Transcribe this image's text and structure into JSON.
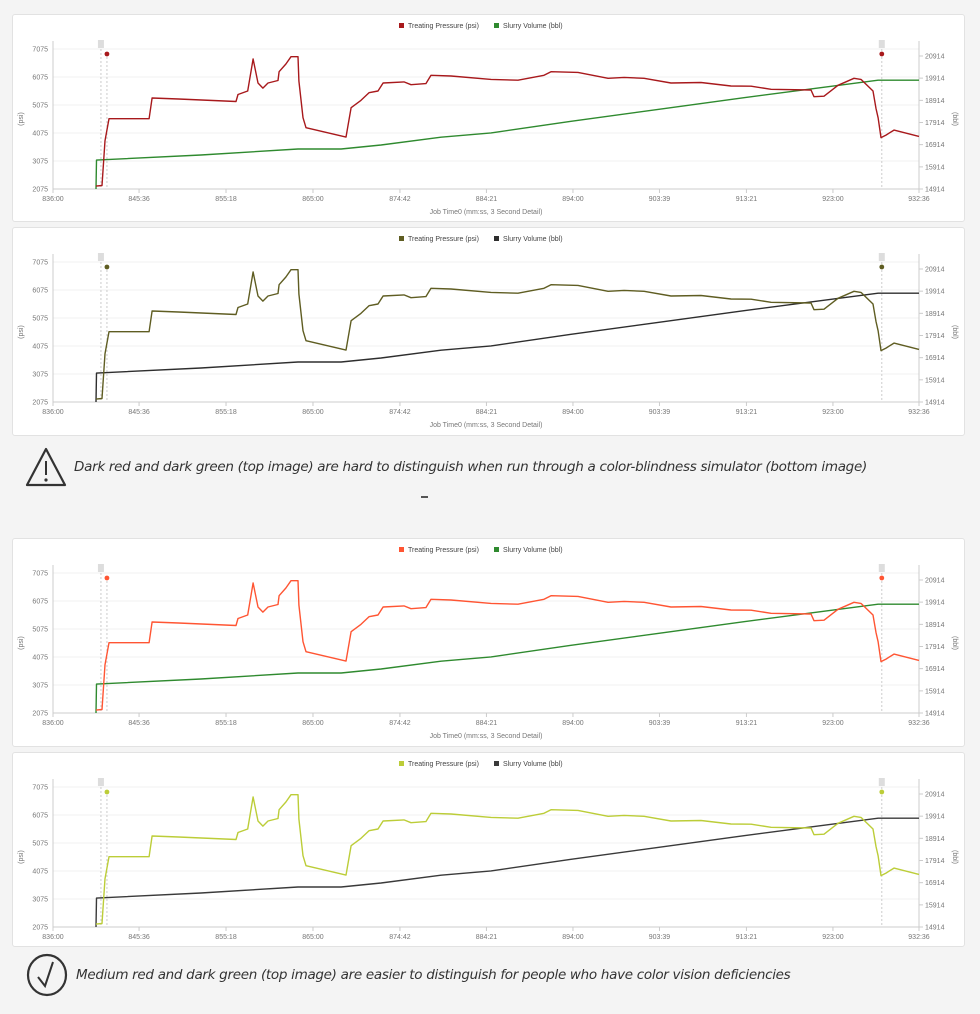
{
  "captions": {
    "warning": "Dark red and dark green (top image) are hard to distinguish when run through a color-blindness simulator (bottom image)",
    "success": "Medium red and dark green (top image) are easier to distinguish for people who have color vision deficiencies"
  },
  "icons": {
    "warning": "warning-triangle-icon",
    "success": "checkmark-circle-icon"
  },
  "chart_data": {
    "type": "line",
    "xlabel": "Job Time0 (mm:ss, 3 Second Detail)",
    "ylabel_left": "(psi)",
    "ylabel_right": "(bbl)",
    "x_ticks": [
      "836:00",
      "845:36",
      "855:18",
      "865:00",
      "874:42",
      "884:21",
      "894:00",
      "903:39",
      "913:21",
      "923:00",
      "932:36"
    ],
    "xlim": [
      "836:00",
      "932:36"
    ],
    "y_left_ticks": [
      2075,
      3075,
      4075,
      5075,
      6075,
      7075
    ],
    "ylim_left": [
      2075,
      7075
    ],
    "y_right_ticks": [
      14914,
      15914,
      16914,
      17914,
      18914,
      19914,
      20914
    ],
    "ylim_right": [
      14914,
      20914
    ],
    "grid": true,
    "legend_position": "top-center",
    "markers": [
      "842:01",
      "928:27"
    ],
    "series": [
      {
        "name": "Treating Pressure (psi)",
        "axis": "left",
        "points": [
          [
            "840:48",
            2180
          ],
          [
            "841:28",
            2200
          ],
          [
            "841:48",
            3800
          ],
          [
            "842:15",
            4585
          ],
          [
            "846:43",
            4585
          ],
          [
            "847:03",
            5325
          ],
          [
            "850:00",
            5290
          ],
          [
            "856:25",
            5200
          ],
          [
            "856:38",
            5450
          ],
          [
            "857:43",
            5575
          ],
          [
            "858:19",
            6718
          ],
          [
            "858:52",
            5860
          ],
          [
            "859:25",
            5680
          ],
          [
            "859:59",
            5860
          ],
          [
            "861:06",
            5950
          ],
          [
            "861:13",
            6265
          ],
          [
            "861:59",
            6540
          ],
          [
            "862:33",
            6800
          ],
          [
            "863:20",
            6800
          ],
          [
            "863:26",
            5932
          ],
          [
            "863:53",
            4620
          ],
          [
            "864:13",
            4265
          ],
          [
            "868:41",
            3930
          ],
          [
            "869:15",
            4980
          ],
          [
            "870:21",
            5240
          ],
          [
            "871:15",
            5515
          ],
          [
            "872:15",
            5575
          ],
          [
            "872:49",
            5860
          ],
          [
            "875:09",
            5900
          ],
          [
            "875:56",
            5800
          ],
          [
            "877:36",
            5840
          ],
          [
            "878:10",
            6135
          ],
          [
            "880:24",
            6110
          ],
          [
            "884:52",
            5990
          ],
          [
            "887:52",
            5960
          ],
          [
            "890:46",
            6135
          ],
          [
            "891:33",
            6265
          ],
          [
            "894:34",
            6240
          ],
          [
            "897:55",
            6030
          ],
          [
            "899:42",
            6060
          ],
          [
            "901:56",
            6030
          ],
          [
            "904:56",
            5860
          ],
          [
            "908:17",
            5880
          ],
          [
            "911:38",
            5755
          ],
          [
            "913:52",
            5745
          ],
          [
            "916:06",
            5635
          ],
          [
            "920:33",
            5610
          ],
          [
            "920:53",
            5370
          ],
          [
            "922:00",
            5390
          ],
          [
            "923:34",
            5780
          ],
          [
            "925:21",
            6030
          ],
          [
            "926:08",
            5990
          ],
          [
            "927:28",
            5575
          ],
          [
            "927:48",
            4950
          ],
          [
            "928:02",
            4620
          ],
          [
            "928:22",
            3910
          ],
          [
            "928:55",
            4000
          ],
          [
            "929:49",
            4180
          ],
          [
            "932:36",
            3955
          ]
        ]
      },
      {
        "name": "Slurry Volume (bbl)",
        "axis": "right",
        "points": [
          [
            "840:48",
            14914
          ],
          [
            "840:51",
            16220
          ],
          [
            "852:30",
            16450
          ],
          [
            "863:20",
            16720
          ],
          [
            "868:08",
            16720
          ],
          [
            "872:35",
            16900
          ],
          [
            "879:17",
            17250
          ],
          [
            "884:52",
            17445
          ],
          [
            "893:47",
            17970
          ],
          [
            "903:29",
            18505
          ],
          [
            "913:05",
            19035
          ],
          [
            "920:33",
            19430
          ],
          [
            "928:02",
            19823
          ],
          [
            "932:36",
            19823
          ]
        ]
      }
    ],
    "variants": [
      {
        "label": "original-dark-red",
        "colors": [
          "#a8191c",
          "#2f8a2f"
        ]
      },
      {
        "label": "simulated-dark-red",
        "colors": [
          "#5f5d22",
          "#2e2e2e"
        ]
      },
      {
        "label": "original-medium-red",
        "colors": [
          "#ff5533",
          "#2f8a2f"
        ]
      },
      {
        "label": "simulated-medium-red",
        "colors": [
          "#bccd38",
          "#3a3a3a"
        ]
      }
    ]
  }
}
